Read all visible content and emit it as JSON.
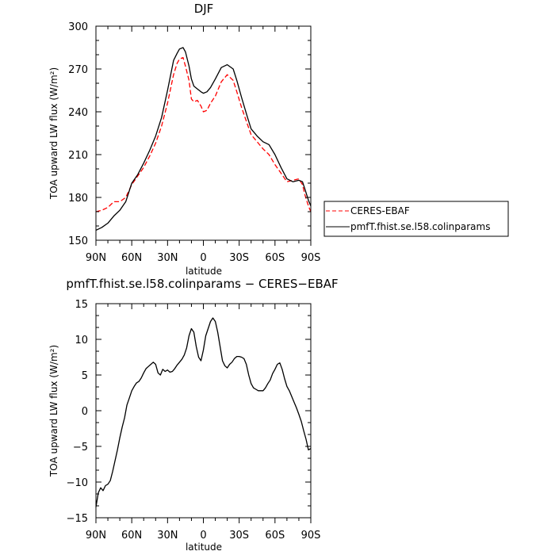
{
  "chart_data": [
    {
      "type": "line",
      "title": "DJF",
      "xlabel": "latitude",
      "ylabel": "TOA upward LW flux (W/m²)",
      "xlim": [
        -90,
        90
      ],
      "ylim": [
        150,
        300
      ],
      "x_ticks": [
        -90,
        -60,
        -30,
        0,
        30,
        60,
        90
      ],
      "x_tick_labels": [
        "90N",
        "60N",
        "30N",
        "0",
        "30S",
        "60S",
        "90S"
      ],
      "y_ticks": [
        150,
        180,
        210,
        240,
        270,
        300
      ],
      "y_tick_labels": [
        "150",
        "180",
        "210",
        "240",
        "270",
        "300"
      ],
      "grid": false,
      "legend_position": "right-outside",
      "series": [
        {
          "name": "CERES-EBAF",
          "color": "#ff0000",
          "style": "dashed",
          "x": [
            -90,
            -85,
            -80,
            -75,
            -70,
            -65,
            -60,
            -55,
            -50,
            -45,
            -40,
            -35,
            -30,
            -25,
            -22,
            -20,
            -17,
            -15,
            -12,
            -10,
            -8,
            -5,
            -2,
            0,
            3,
            6,
            10,
            15,
            20,
            25,
            28,
            32,
            37,
            40,
            45,
            50,
            55,
            60,
            65,
            70,
            75,
            80,
            83,
            85,
            88,
            90
          ],
          "y": [
            170,
            171,
            173,
            177,
            177,
            180,
            189,
            195,
            201,
            209,
            218,
            230,
            246,
            266,
            274,
            277,
            278,
            272,
            262,
            249,
            247,
            248,
            244,
            240,
            241,
            246,
            251,
            261,
            266,
            262,
            254,
            243,
            231,
            224,
            219,
            214,
            210,
            203,
            197,
            191,
            192,
            193,
            189,
            182,
            174,
            170
          ]
        },
        {
          "name": "pmfT.fhist.se.l58.colinparams",
          "color": "#000000",
          "style": "solid",
          "x": [
            -90,
            -85,
            -80,
            -75,
            -70,
            -65,
            -60,
            -55,
            -50,
            -45,
            -40,
            -35,
            -30,
            -25,
            -22,
            -20,
            -17,
            -15,
            -12,
            -10,
            -8,
            -5,
            -2,
            0,
            3,
            6,
            10,
            15,
            20,
            25,
            28,
            32,
            37,
            40,
            45,
            50,
            55,
            60,
            65,
            70,
            75,
            80,
            83,
            85,
            88,
            90
          ],
          "y": [
            157,
            159,
            162,
            167,
            171,
            177,
            190,
            196,
            204,
            213,
            223,
            236,
            255,
            276,
            281,
            284,
            285,
            282,
            272,
            263,
            258,
            256,
            254,
            253,
            254,
            257,
            263,
            271,
            273,
            270,
            262,
            250,
            236,
            228,
            223,
            219,
            217,
            210,
            201,
            193,
            191,
            192,
            191,
            186,
            178,
            174
          ]
        }
      ]
    },
    {
      "type": "line",
      "title": "pmfT.fhist.se.l58.colinparams − CERES−EBAF",
      "xlabel": "latitude",
      "ylabel": "TOA upward LW flux (W/m²)",
      "xlim": [
        -90,
        90
      ],
      "ylim": [
        -15,
        15
      ],
      "x_ticks": [
        -90,
        -60,
        -30,
        0,
        30,
        60,
        90
      ],
      "x_tick_labels": [
        "90N",
        "60N",
        "30N",
        "0",
        "30S",
        "60S",
        "90S"
      ],
      "y_ticks": [
        -15,
        -10,
        -5,
        0,
        5,
        10,
        15
      ],
      "y_tick_labels": [
        "−15",
        "−10",
        "−5",
        "0",
        "5",
        "10",
        "15"
      ],
      "grid": false,
      "series": [
        {
          "color": "#000000",
          "style": "solid",
          "x": [
            -90,
            -88,
            -86,
            -84,
            -82,
            -80,
            -78,
            -76,
            -74,
            -72,
            -70,
            -68,
            -66,
            -64,
            -62,
            -60,
            -58,
            -56,
            -54,
            -52,
            -50,
            -48,
            -46,
            -44,
            -42,
            -40,
            -38,
            -36,
            -34,
            -32,
            -30,
            -28,
            -26,
            -24,
            -22,
            -20,
            -18,
            -16,
            -14,
            -12,
            -10,
            -8,
            -6,
            -4,
            -2,
            0,
            2,
            4,
            6,
            8,
            10,
            12,
            14,
            16,
            18,
            20,
            22,
            24,
            26,
            28,
            30,
            32,
            34,
            36,
            38,
            40,
            42,
            44,
            46,
            48,
            50,
            52,
            54,
            56,
            58,
            60,
            62,
            64,
            66,
            68,
            70,
            72,
            74,
            76,
            78,
            80,
            82,
            84,
            86,
            88,
            90
          ],
          "y": [
            -13.5,
            -11.5,
            -10.8,
            -11.2,
            -10.5,
            -10.3,
            -9.8,
            -8.5,
            -7.0,
            -5.5,
            -3.8,
            -2.3,
            -1.0,
            0.8,
            1.8,
            2.8,
            3.4,
            3.9,
            4.1,
            4.6,
            5.3,
            5.9,
            6.2,
            6.5,
            6.8,
            6.5,
            5.3,
            5.0,
            5.8,
            5.5,
            5.7,
            5.4,
            5.5,
            5.9,
            6.4,
            6.8,
            7.2,
            7.8,
            8.8,
            10.5,
            11.5,
            11.0,
            9.0,
            7.5,
            7.0,
            8.5,
            10.5,
            11.5,
            12.5,
            13.0,
            12.5,
            11.0,
            9.0,
            7.0,
            6.3,
            6.0,
            6.5,
            6.8,
            7.3,
            7.6,
            7.6,
            7.5,
            7.3,
            6.5,
            5.0,
            3.8,
            3.2,
            3.0,
            2.8,
            2.8,
            2.8,
            3.2,
            3.8,
            4.3,
            5.2,
            5.8,
            6.5,
            6.7,
            5.8,
            4.5,
            3.4,
            2.8,
            2.0,
            1.2,
            0.4,
            -0.5,
            -1.5,
            -2.8,
            -4.0,
            -5.5,
            -5.3
          ]
        }
      ]
    }
  ]
}
